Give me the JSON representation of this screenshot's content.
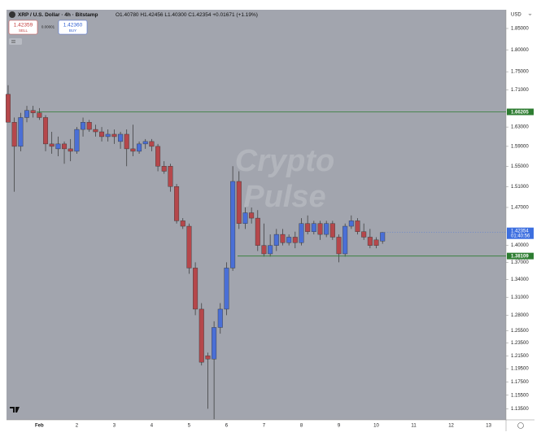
{
  "header": {
    "symbol": "XRP / U.S. Dollar · 4h · Bitstamp",
    "ohlc": "O1.40780 H1.42456 L1.40300 C1.42354 +0.01671 (+1.19%)",
    "sell_price": "1.42359",
    "sell_label": "SELL",
    "spread": "0.00001",
    "buy_price": "1.42360",
    "buy_label": "BUY",
    "currency": "USD"
  },
  "chart_data": {
    "type": "candlestick",
    "log_scale": true,
    "up_color": "#4a6fd6",
    "down_color": "#b5474b",
    "watermark_line1": "Crypto",
    "watermark_line2": "Pulse",
    "categories": [
      null,
      null,
      null,
      null,
      null,
      "Feb",
      null,
      null,
      null,
      null,
      null,
      "2",
      null,
      null,
      null,
      null,
      null,
      "3",
      null,
      null,
      null,
      null,
      null,
      "4",
      null,
      null,
      null,
      null,
      null,
      "5",
      null,
      null,
      null,
      null,
      null,
      "6",
      null,
      null,
      null,
      null,
      null,
      "7",
      null,
      null,
      null,
      null,
      null,
      "8",
      null,
      null,
      null,
      null,
      null,
      "9",
      null,
      null,
      null,
      null,
      null,
      "10",
      null,
      null,
      null,
      null,
      null,
      "11",
      null,
      null,
      null,
      null,
      null,
      "12",
      null,
      null,
      null,
      null,
      null,
      "13"
    ],
    "open": [
      1.7,
      1.64,
      1.59,
      1.65,
      1.665,
      1.66,
      1.65,
      1.595,
      1.585,
      1.595,
      1.585,
      1.58,
      1.625,
      1.64,
      1.625,
      1.62,
      1.61,
      1.615,
      1.6,
      1.615,
      1.585,
      1.58,
      1.595,
      1.6,
      1.59,
      1.55,
      1.55,
      1.51,
      1.445,
      1.435,
      1.36,
      1.29,
      1.215,
      1.21,
      1.26,
      1.29,
      1.36,
      1.52,
      1.44,
      1.46,
      1.45,
      1.4,
      1.385,
      1.4,
      1.42,
      1.405,
      1.415,
      1.405,
      1.44,
      1.425,
      1.44,
      1.42,
      1.44,
      1.415,
      1.385,
      1.435,
      1.445,
      1.425,
      1.415,
      1.41,
      1.4078,
      null,
      null,
      null,
      null,
      null,
      null,
      null,
      null,
      null,
      null,
      null,
      null,
      null,
      null,
      null,
      null,
      null
    ],
    "high": [
      1.72,
      1.65,
      1.66,
      1.675,
      1.675,
      1.67,
      1.655,
      1.62,
      1.61,
      1.6,
      1.605,
      1.63,
      1.65,
      1.645,
      1.635,
      1.63,
      1.625,
      1.625,
      1.62,
      1.625,
      1.635,
      1.6,
      1.605,
      1.605,
      1.595,
      1.56,
      1.555,
      1.515,
      1.45,
      1.44,
      1.37,
      1.3,
      1.22,
      1.27,
      1.3,
      1.37,
      1.55,
      1.54,
      1.47,
      1.47,
      1.465,
      1.44,
      1.42,
      1.43,
      1.43,
      1.42,
      1.425,
      1.45,
      1.455,
      1.445,
      1.445,
      1.445,
      1.445,
      1.42,
      1.44,
      1.455,
      1.45,
      1.44,
      1.43,
      1.415,
      1.42456,
      null,
      null,
      null,
      null,
      null,
      null,
      null,
      null,
      null,
      null,
      null,
      null,
      null,
      null,
      null,
      null,
      null
    ],
    "low": [
      1.64,
      1.5,
      1.58,
      1.64,
      1.65,
      1.645,
      1.58,
      1.575,
      1.57,
      1.555,
      1.56,
      1.575,
      1.61,
      1.62,
      1.61,
      1.6,
      1.6,
      1.595,
      1.585,
      1.55,
      1.57,
      1.575,
      1.585,
      1.58,
      1.54,
      1.535,
      1.5,
      1.44,
      1.43,
      1.35,
      1.28,
      1.2,
      1.135,
      1.12,
      1.25,
      1.28,
      1.355,
      1.43,
      1.43,
      1.44,
      1.39,
      1.38,
      1.38,
      1.39,
      1.4,
      1.4,
      1.395,
      1.4,
      1.42,
      1.42,
      1.41,
      1.415,
      1.41,
      1.37,
      1.38,
      1.43,
      1.42,
      1.41,
      1.395,
      1.395,
      1.403,
      null,
      null,
      null,
      null,
      null,
      null,
      null,
      null,
      null,
      null,
      null,
      null,
      null,
      null,
      null,
      null,
      null
    ],
    "close": [
      1.64,
      1.59,
      1.65,
      1.665,
      1.66,
      1.65,
      1.595,
      1.59,
      1.595,
      1.585,
      1.58,
      1.625,
      1.64,
      1.625,
      1.62,
      1.61,
      1.615,
      1.61,
      1.615,
      1.585,
      1.58,
      1.595,
      1.6,
      1.59,
      1.55,
      1.54,
      1.51,
      1.445,
      1.435,
      1.36,
      1.29,
      1.205,
      1.21,
      1.26,
      1.29,
      1.36,
      1.52,
      1.44,
      1.46,
      1.45,
      1.4,
      1.385,
      1.4,
      1.42,
      1.405,
      1.415,
      1.405,
      1.44,
      1.425,
      1.44,
      1.42,
      1.44,
      1.415,
      1.385,
      1.435,
      1.445,
      1.425,
      1.415,
      1.4,
      1.4,
      1.42354,
      null,
      null,
      null,
      null,
      null,
      null,
      null,
      null,
      null,
      null,
      null,
      null,
      null,
      null,
      null,
      null,
      null
    ],
    "ylim": [
      1.119,
      1.895
    ],
    "yticks": [
      {
        "value": 1.85,
        "label": "1.85000"
      },
      {
        "value": 1.8,
        "label": "1.80000"
      },
      {
        "value": 1.75,
        "label": "1.75000"
      },
      {
        "value": 1.71,
        "label": "1.71000"
      },
      {
        "value": 1.63,
        "label": "1.63000"
      },
      {
        "value": 1.59,
        "label": "1.59000"
      },
      {
        "value": 1.55,
        "label": "1.55000"
      },
      {
        "value": 1.51,
        "label": "1.51000"
      },
      {
        "value": 1.47,
        "label": "1.47000"
      },
      {
        "value": 1.4,
        "label": "1.40000"
      },
      {
        "value": 1.37,
        "label": "1.37000"
      },
      {
        "value": 1.34,
        "label": "1.34000"
      },
      {
        "value": 1.31,
        "label": "1.31000"
      },
      {
        "value": 1.28,
        "label": "1.28000"
      },
      {
        "value": 1.255,
        "label": "1.25500"
      },
      {
        "value": 1.235,
        "label": "1.23500"
      },
      {
        "value": 1.215,
        "label": "1.21500"
      },
      {
        "value": 1.195,
        "label": "1.19500"
      },
      {
        "value": 1.175,
        "label": "1.17500"
      },
      {
        "value": 1.155,
        "label": "1.15500"
      },
      {
        "value": 1.135,
        "label": "1.13500"
      }
    ],
    "levels": [
      {
        "value": 1.66205,
        "color": "#2e7d32"
      },
      {
        "value": 1.38109,
        "color": "#2e7d32"
      }
    ],
    "current_price": 1.42354,
    "countdown": "01:40:56",
    "current_color": "#3d6fe0"
  }
}
